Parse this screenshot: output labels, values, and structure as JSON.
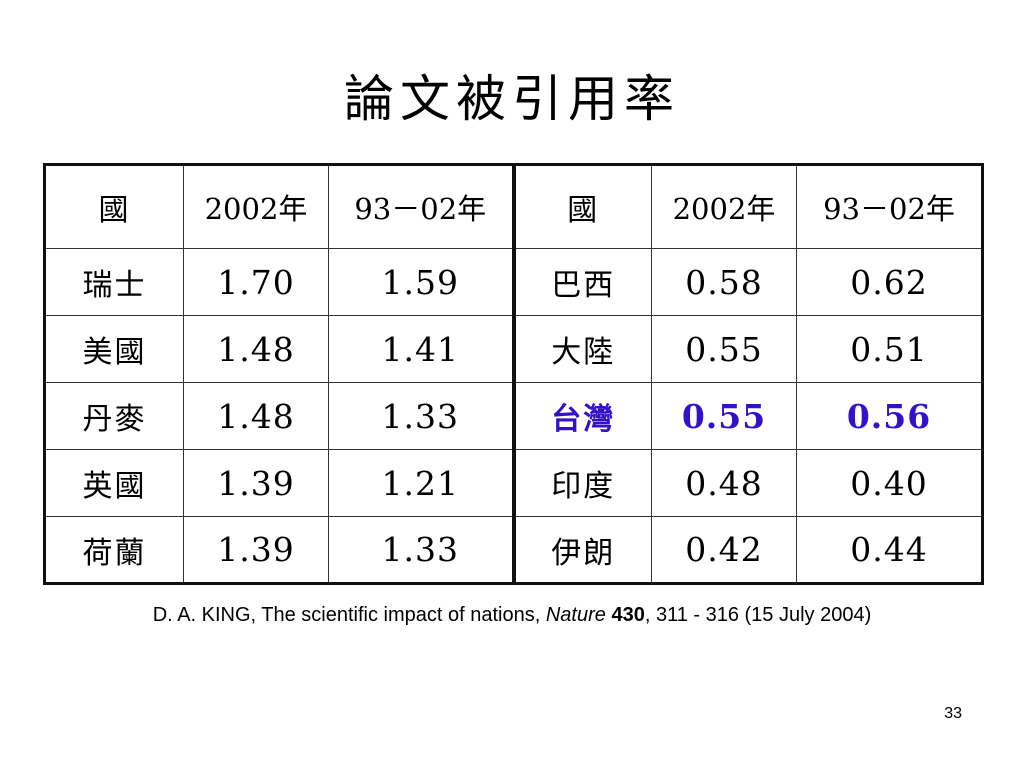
{
  "title": "論文被引用率",
  "colors": {
    "text": "#000000",
    "highlight": "#3311cc",
    "background": "#ffffff"
  },
  "left_table": {
    "headers": [
      "國",
      "2002年",
      "93－02年"
    ],
    "rows": [
      {
        "country": "瑞士",
        "y2002": "1.70",
        "y93_02": "1.59",
        "highlighted": false
      },
      {
        "country": "美國",
        "y2002": "1.48",
        "y93_02": "1.41",
        "highlighted": false
      },
      {
        "country": "丹麥",
        "y2002": "1.48",
        "y93_02": "1.33",
        "highlighted": false
      },
      {
        "country": "英國",
        "y2002": "1.39",
        "y93_02": "1.21",
        "highlighted": false
      },
      {
        "country": "荷蘭",
        "y2002": "1.39",
        "y93_02": "1.33",
        "highlighted": false
      }
    ]
  },
  "right_table": {
    "headers": [
      "國",
      "2002年",
      "93－02年"
    ],
    "rows": [
      {
        "country": "巴西",
        "y2002": "0.58",
        "y93_02": "0.62",
        "highlighted": false
      },
      {
        "country": "大陸",
        "y2002": "0.55",
        "y93_02": "0.51",
        "highlighted": false
      },
      {
        "country": "台灣",
        "y2002": "0.55",
        "y93_02": "0.56",
        "highlighted": true
      },
      {
        "country": "印度",
        "y2002": "0.48",
        "y93_02": "0.40",
        "highlighted": false
      },
      {
        "country": "伊朗",
        "y2002": "0.42",
        "y93_02": "0.44",
        "highlighted": false
      }
    ]
  },
  "citation": {
    "authors_title": "D. A. KING, The scientific impact of nations, ",
    "journal": "Nature",
    "volume": "430",
    "pages_date": ", 311 - 316 (15 July 2004)"
  },
  "page_number": "33"
}
